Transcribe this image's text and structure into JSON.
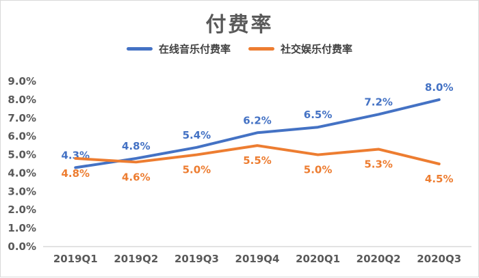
{
  "page": {
    "background": "#ffffff",
    "border_color": "#d9d9d9"
  },
  "chart_data": {
    "type": "line",
    "title": "付费率",
    "categories": [
      "2019Q1",
      "2019Q2",
      "2019Q3",
      "2019Q4",
      "2020Q1",
      "2020Q2",
      "2020Q3"
    ],
    "series": [
      {
        "name": "在线音乐付费率",
        "color": "#4472C4",
        "values": [
          4.3,
          4.8,
          5.4,
          6.2,
          6.5,
          7.2,
          8.0
        ],
        "labels": [
          "4.3%",
          "4.8%",
          "5.4%",
          "6.2%",
          "6.5%",
          "7.2%",
          "8.0%"
        ],
        "label_position": "above"
      },
      {
        "name": "社交娱乐付费率",
        "color": "#ED7D31",
        "values": [
          4.8,
          4.6,
          5.0,
          5.5,
          5.0,
          5.3,
          4.5
        ],
        "labels": [
          "4.8%",
          "4.6%",
          "5.0%",
          "5.5%",
          "5.0%",
          "5.3%",
          "4.5%"
        ],
        "label_position": "below"
      }
    ],
    "ylim": [
      0,
      9
    ],
    "ytick_step": 1,
    "yticks": [
      "0.0%",
      "1.0%",
      "2.0%",
      "3.0%",
      "4.0%",
      "5.0%",
      "6.0%",
      "7.0%",
      "8.0%",
      "9.0%"
    ],
    "grid": false,
    "legend_position": "top",
    "xlabel": "",
    "ylabel": "",
    "axis_color": "#d9d9d9",
    "tick_label_color": "#595959"
  }
}
